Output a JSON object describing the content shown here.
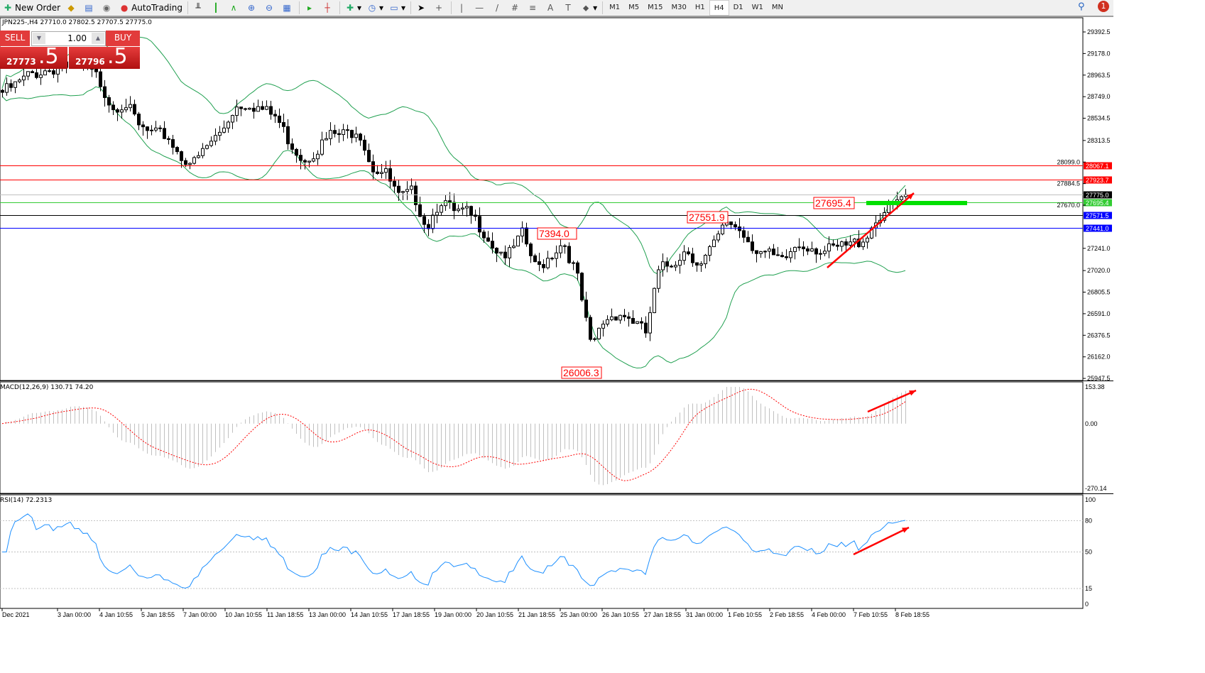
{
  "toolbar": {
    "new_order": "New Order",
    "autotrading": "AutoTrading",
    "timeframes": [
      "M1",
      "M5",
      "M15",
      "M30",
      "H1",
      "H4",
      "D1",
      "W1",
      "MN"
    ],
    "active_timeframe": "H4",
    "notification_count": "1"
  },
  "symbol_info": "JPN225-,H4  27710.0 27802.5 27707.5 27775.0",
  "trade_panel": {
    "sell": "SELL",
    "buy": "BUY",
    "lot": "1.00",
    "bid_main": "27773",
    "bid_frac": ".5",
    "ask_main": "27796",
    "ask_frac": ".5"
  },
  "colors": {
    "bull": "#ffffff",
    "bear": "#000000",
    "bands": "#20a050",
    "macd_signal": "#ff0000",
    "macd_hist": "#c0c0c0",
    "rsi": "#1e90ff",
    "arrow": "#ff0000"
  },
  "chart_data": [
    {
      "type": "candlestick",
      "name": "JPN225-,H4",
      "close": [
        28792,
        28863,
        28969,
        29004,
        29040,
        29075,
        29040,
        28934,
        28651,
        28687,
        28439,
        28369,
        28369,
        28157,
        28086,
        28263,
        28404,
        28651,
        28687,
        28616,
        28545,
        28298,
        28122,
        28228,
        28369,
        28369,
        28439,
        28051,
        27981,
        27733,
        27804,
        27451,
        27733,
        27592,
        27592,
        27451,
        27239,
        27169,
        27380,
        27027,
        27169,
        27310,
        26957,
        26251,
        26533,
        26604,
        26533,
        26392,
        27027,
        27098,
        27239,
        27063,
        27274,
        27521,
        27416,
        27239,
        27169,
        27098,
        27274,
        27274,
        27204,
        27239,
        27274,
        27345,
        27557,
        27663,
        27775
      ],
      "yticks": [
        "29392.5",
        "29178.0",
        "28963.5",
        "28749.0",
        "28534.5",
        "28313.5",
        "28099.0",
        "27884.5",
        "27670.0",
        "27241.0",
        "27020.0",
        "26805.5",
        "26591.0",
        "26376.5",
        "26162.0",
        "25947.5"
      ],
      "ylim": [
        25947.5,
        29392.5
      ],
      "indicator": "Bollinger Bands",
      "levels": [
        {
          "value": "28067.1",
          "color": "#ff0000"
        },
        {
          "value": "27923.7",
          "color": "#ff0000"
        },
        {
          "value": "27775.0",
          "color": "#000000",
          "line": "#c0c0c0"
        },
        {
          "value": "27695.4",
          "color": "#33cc33"
        },
        {
          "value": "27571.5",
          "color": "#0000ff",
          "line": "#000000"
        },
        {
          "value": "27441.0",
          "color": "#0000ff"
        }
      ],
      "annotations": [
        "27551.9",
        "7394.0",
        "26006.3",
        "27695.4"
      ],
      "xticks": [
        "Dec 2021",
        "3 Jan 00:00",
        "4 Jan 10:55",
        "5 Jan 18:55",
        "7 Jan 00:00",
        "10 Jan 10:55",
        "11 Jan 18:55",
        "13 Jan 00:00",
        "14 Jan 10:55",
        "17 Jan 18:55",
        "19 Jan 00:00",
        "20 Jan 10:55",
        "21 Jan 18:55",
        "25 Jan 00:00",
        "26 Jan 10:55",
        "27 Jan 18:55",
        "31 Jan 00:00",
        "1 Feb 10:55",
        "2 Feb 18:55",
        "4 Feb 00:00",
        "7 Feb 10:55",
        "8 Feb 18:55"
      ]
    },
    {
      "type": "bar+line",
      "name": "MACD(12,26,9) 130.71 74.20",
      "ylim": [
        -270.14,
        153.38
      ],
      "yticks": [
        "153.38",
        "0.00",
        "-270.14"
      ]
    },
    {
      "type": "line",
      "name": "RSI(14) 72.2313",
      "ylim": [
        0,
        100
      ],
      "yticks": [
        "100",
        "80",
        "50",
        "15",
        "0"
      ],
      "levels": [
        80,
        50,
        15
      ]
    }
  ]
}
